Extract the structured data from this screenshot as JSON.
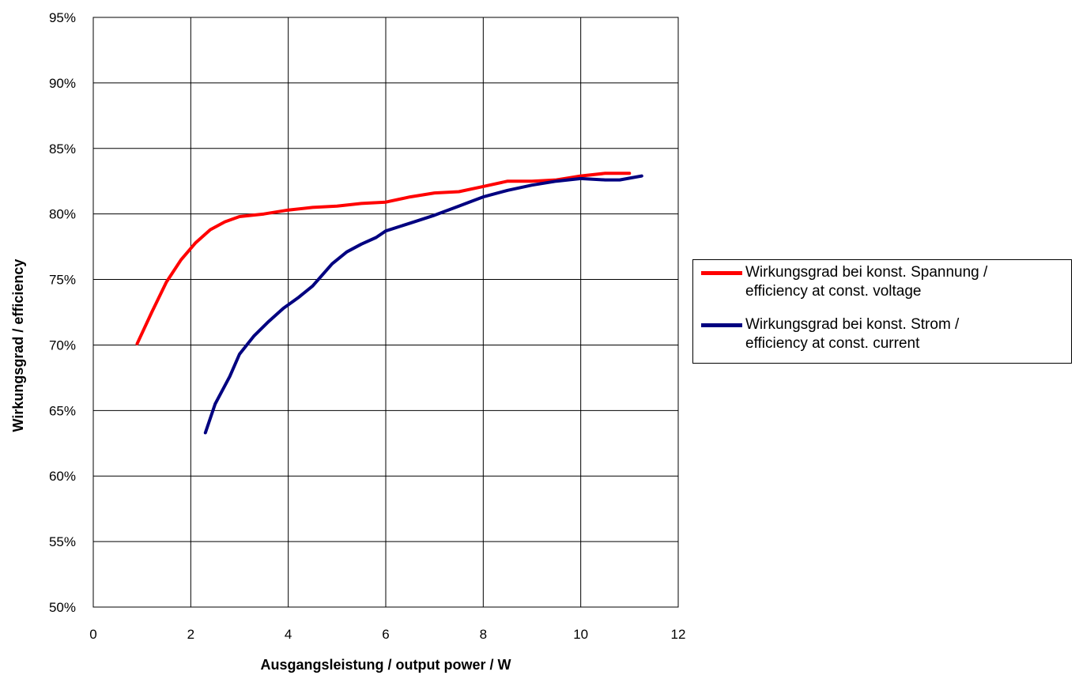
{
  "chart_data": {
    "type": "line",
    "xlabel": "Ausgangsleistung / output power / W",
    "ylabel": "Wirkungsgrad / efficiency",
    "xlim": [
      0,
      12
    ],
    "ylim": [
      50,
      95
    ],
    "x_ticks": [
      0,
      2,
      4,
      6,
      8,
      10,
      12
    ],
    "x_tick_labels": [
      "0",
      "2",
      "4",
      "6",
      "8",
      "10",
      "12"
    ],
    "y_ticks": [
      50,
      55,
      60,
      65,
      70,
      75,
      80,
      85,
      90,
      95
    ],
    "y_tick_labels": [
      "50%",
      "55%",
      "60%",
      "65%",
      "70%",
      "75%",
      "80%",
      "85%",
      "90%",
      "95%"
    ],
    "grid": true,
    "legend_position": "right",
    "series": [
      {
        "name_line1": "Wirkungsgrad bei konst. Spannung /",
        "name_line2": "efficiency at const. voltage",
        "color": "#ff0000",
        "points": [
          [
            0.9,
            70.1
          ],
          [
            1.2,
            72.5
          ],
          [
            1.5,
            74.8
          ],
          [
            1.8,
            76.5
          ],
          [
            2.1,
            77.8
          ],
          [
            2.4,
            78.8
          ],
          [
            2.7,
            79.4
          ],
          [
            3.0,
            79.8
          ],
          [
            3.5,
            80.0
          ],
          [
            4.0,
            80.3
          ],
          [
            4.5,
            80.5
          ],
          [
            5.0,
            80.6
          ],
          [
            5.5,
            80.8
          ],
          [
            6.0,
            80.9
          ],
          [
            6.5,
            81.3
          ],
          [
            7.0,
            81.6
          ],
          [
            7.5,
            81.7
          ],
          [
            8.0,
            82.1
          ],
          [
            8.5,
            82.5
          ],
          [
            9.0,
            82.5
          ],
          [
            9.5,
            82.6
          ],
          [
            10.0,
            82.9
          ],
          [
            10.5,
            83.1
          ],
          [
            11.0,
            83.1
          ]
        ]
      },
      {
        "name_line1": "Wirkungsgrad bei konst. Strom /",
        "name_line2": "efficiency at const. current",
        "color": "#000080",
        "points": [
          [
            2.3,
            63.3
          ],
          [
            2.5,
            65.5
          ],
          [
            2.8,
            67.6
          ],
          [
            3.0,
            69.3
          ],
          [
            3.3,
            70.7
          ],
          [
            3.6,
            71.8
          ],
          [
            3.9,
            72.8
          ],
          [
            4.2,
            73.6
          ],
          [
            4.5,
            74.5
          ],
          [
            4.9,
            76.2
          ],
          [
            5.2,
            77.1
          ],
          [
            5.5,
            77.7
          ],
          [
            5.8,
            78.2
          ],
          [
            6.0,
            78.7
          ],
          [
            6.5,
            79.3
          ],
          [
            7.0,
            79.9
          ],
          [
            7.5,
            80.6
          ],
          [
            8.0,
            81.3
          ],
          [
            8.5,
            81.8
          ],
          [
            9.0,
            82.2
          ],
          [
            9.5,
            82.5
          ],
          [
            10.0,
            82.7
          ],
          [
            10.5,
            82.6
          ],
          [
            10.8,
            82.6
          ],
          [
            11.25,
            82.9
          ]
        ]
      }
    ]
  }
}
